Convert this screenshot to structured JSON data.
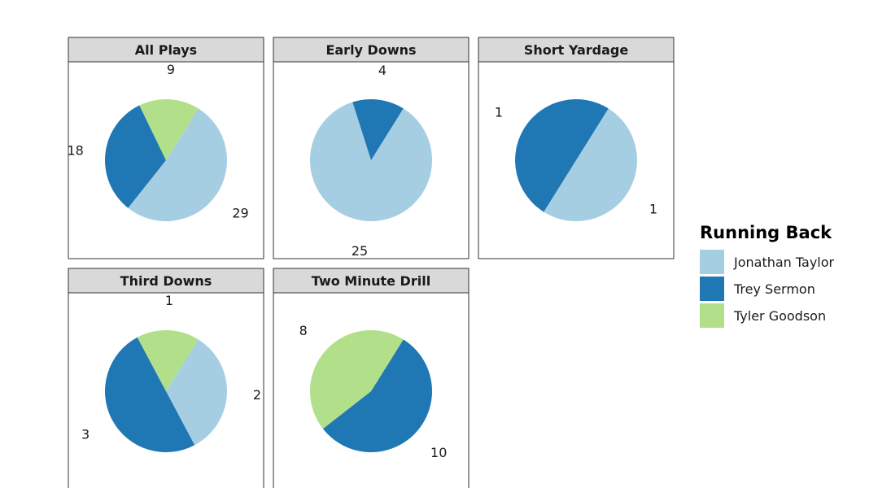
{
  "chart_data": {
    "type": "pie",
    "title": "",
    "series_colors": {
      "Jonathan Taylor": "#a6cee3",
      "Trey Sermon": "#1f78b4",
      "Tyler Goodson": "#b2df8a"
    },
    "legend": {
      "title": "Running Back",
      "placement": "right",
      "entries": [
        "Jonathan Taylor",
        "Trey Sermon",
        "Tyler Goodson"
      ]
    },
    "panels": [
      {
        "title": "All Plays",
        "slices": [
          {
            "label": "Jonathan Taylor",
            "value": 29
          },
          {
            "label": "Trey Sermon",
            "value": 18
          },
          {
            "label": "Tyler Goodson",
            "value": 9
          }
        ]
      },
      {
        "title": "Early Downs",
        "slices": [
          {
            "label": "Jonathan Taylor",
            "value": 25
          },
          {
            "label": "Trey Sermon",
            "value": 4
          }
        ]
      },
      {
        "title": "Short Yardage",
        "slices": [
          {
            "label": "Jonathan Taylor",
            "value": 1
          },
          {
            "label": "Trey Sermon",
            "value": 1
          }
        ]
      },
      {
        "title": "Third Downs",
        "slices": [
          {
            "label": "Jonathan Taylor",
            "value": 2
          },
          {
            "label": "Trey Sermon",
            "value": 3
          },
          {
            "label": "Tyler Goodson",
            "value": 1
          }
        ]
      },
      {
        "title": "Two Minute Drill",
        "slices": [
          {
            "label": "Trey Sermon",
            "value": 10
          },
          {
            "label": "Tyler Goodson",
            "value": 8
          }
        ]
      }
    ]
  }
}
